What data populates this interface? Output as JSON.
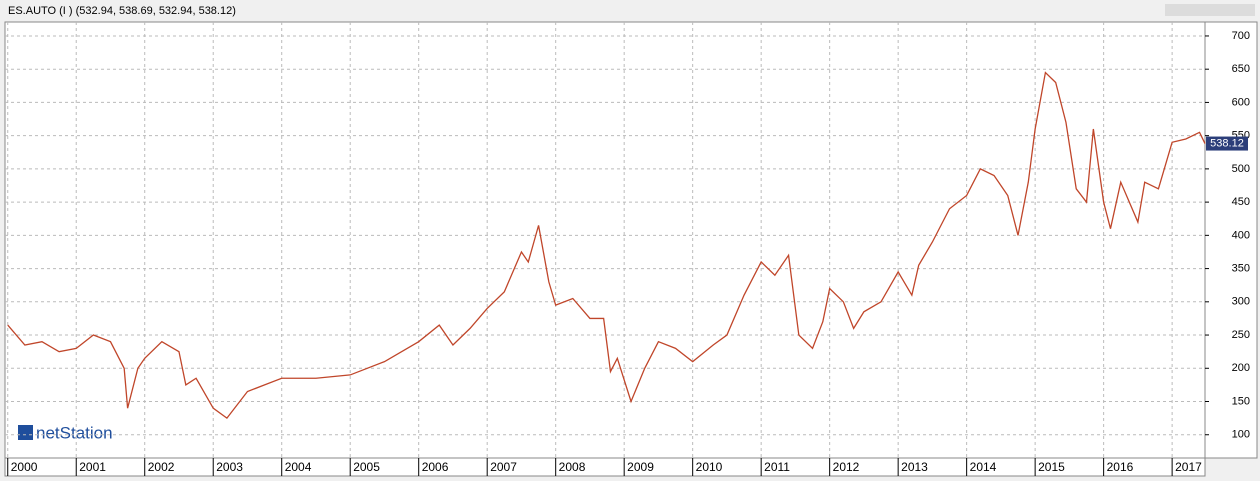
{
  "chart_data": {
    "type": "line",
    "title": "ES.AUTO (I ) (532.94, 538.69, 532.94, 538.12)",
    "logo": "netStation",
    "x": [
      2000.0,
      2000.25,
      2000.5,
      2000.75,
      2001.0,
      2001.25,
      2001.5,
      2001.7,
      2001.75,
      2001.9,
      2002.0,
      2002.25,
      2002.5,
      2002.6,
      2002.75,
      2003.0,
      2003.2,
      2003.5,
      2003.75,
      2004.0,
      2004.5,
      2005.0,
      2005.5,
      2005.75,
      2006.0,
      2006.3,
      2006.5,
      2006.75,
      2007.0,
      2007.25,
      2007.5,
      2007.6,
      2007.75,
      2007.9,
      2008.0,
      2008.25,
      2008.5,
      2008.7,
      2008.8,
      2008.9,
      2009.1,
      2009.3,
      2009.5,
      2009.75,
      2010.0,
      2010.3,
      2010.5,
      2010.75,
      2011.0,
      2011.2,
      2011.4,
      2011.55,
      2011.75,
      2011.9,
      2012.0,
      2012.2,
      2012.35,
      2012.5,
      2012.75,
      2013.0,
      2013.2,
      2013.3,
      2013.5,
      2013.75,
      2014.0,
      2014.2,
      2014.4,
      2014.6,
      2014.75,
      2014.9,
      2015.0,
      2015.15,
      2015.3,
      2015.45,
      2015.6,
      2015.75,
      2015.85,
      2016.0,
      2016.1,
      2016.25,
      2016.5,
      2016.6,
      2016.8,
      2017.0,
      2017.2,
      2017.4,
      2017.48
    ],
    "series": [
      {
        "name": "ES.AUTO",
        "color": "#c0462a",
        "values": [
          265,
          235,
          240,
          225,
          230,
          250,
          240,
          200,
          140,
          200,
          215,
          240,
          225,
          175,
          185,
          140,
          125,
          165,
          175,
          185,
          185,
          190,
          210,
          225,
          240,
          265,
          235,
          260,
          290,
          315,
          375,
          360,
          415,
          330,
          295,
          305,
          275,
          275,
          195,
          215,
          150,
          200,
          240,
          230,
          210,
          235,
          250,
          310,
          360,
          340,
          370,
          250,
          230,
          270,
          320,
          300,
          260,
          285,
          300,
          345,
          310,
          355,
          390,
          440,
          460,
          500,
          490,
          460,
          400,
          480,
          560,
          645,
          630,
          570,
          470,
          450,
          560,
          450,
          410,
          480,
          420,
          480,
          470,
          540,
          545,
          555,
          538.12
        ]
      }
    ],
    "last_value": 538.12,
    "xlim": [
      1999.96,
      2017.48
    ],
    "xticks": [
      2000,
      2001,
      2002,
      2003,
      2004,
      2005,
      2006,
      2007,
      2008,
      2009,
      2010,
      2011,
      2012,
      2013,
      2014,
      2015,
      2016,
      2017
    ],
    "ylim": [
      65,
      721
    ],
    "yticks": [
      100,
      150,
      200,
      250,
      300,
      350,
      400,
      450,
      500,
      550,
      600,
      650,
      700
    ],
    "grid": true
  }
}
